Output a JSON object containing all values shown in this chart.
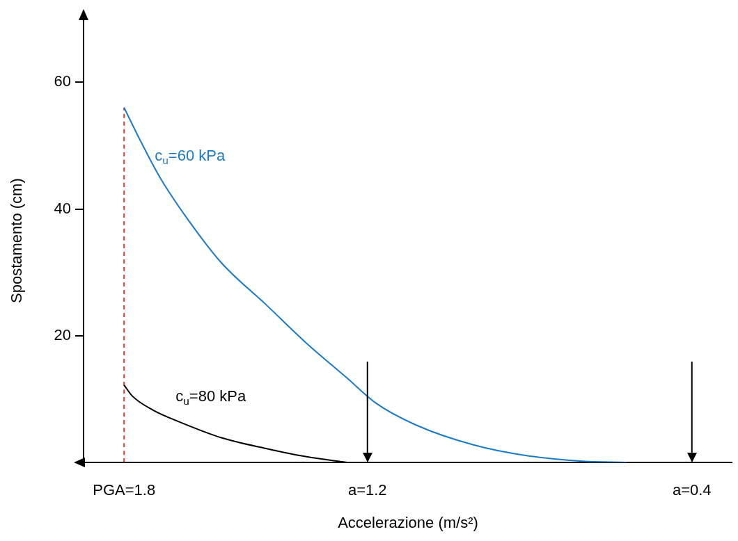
{
  "chart_data": {
    "type": "line",
    "xlabel": "Accelerazione (m/s²)",
    "ylabel": "Spostamento (cm)",
    "xlim": [
      1.9,
      0.3
    ],
    "xticks": [
      {
        "value": 1.8,
        "label": "PGA=1.8"
      },
      {
        "value": 1.2,
        "label": "a=1.2"
      },
      {
        "value": 0.4,
        "label": "a=0.4"
      }
    ],
    "ylim": [
      0,
      70
    ],
    "yticks": [
      20,
      40,
      60
    ],
    "grid": false,
    "legend": false,
    "marker": "none",
    "series": [
      {
        "name": "c$_{u}$=60 kPa",
        "color": "#1a7ac8",
        "x": [
          1.8,
          1.76,
          1.71,
          1.64,
          1.56,
          1.45,
          1.35,
          1.25,
          1.18,
          1.08,
          0.94,
          0.81,
          0.67,
          0.56
        ],
        "values": [
          56.0,
          50.8,
          44.8,
          38.1,
          31.5,
          24.9,
          18.8,
          13.3,
          9.4,
          5.9,
          2.8,
          1.1,
          0.2,
          0
        ]
      },
      {
        "name": "c$_{u}$=80 kPa",
        "color": "#000000",
        "x": [
          1.8,
          1.78,
          1.73,
          1.66,
          1.56,
          1.45,
          1.35,
          1.25
        ],
        "values": [
          12.2,
          10.5,
          8.3,
          6.3,
          3.9,
          2.2,
          0.9,
          0
        ]
      },
      {
        "color": "#e8322e",
        "line_style": "dashed",
        "x": [
          1.8,
          1.8
        ],
        "values": [
          0,
          56.0
        ]
      }
    ],
    "ref_lines": [
      {
        "axis": "x",
        "value": 1.2,
        "color": "#000000"
      },
      {
        "axis": "x",
        "value": 0.4,
        "color": "#000000"
      }
    ]
  }
}
